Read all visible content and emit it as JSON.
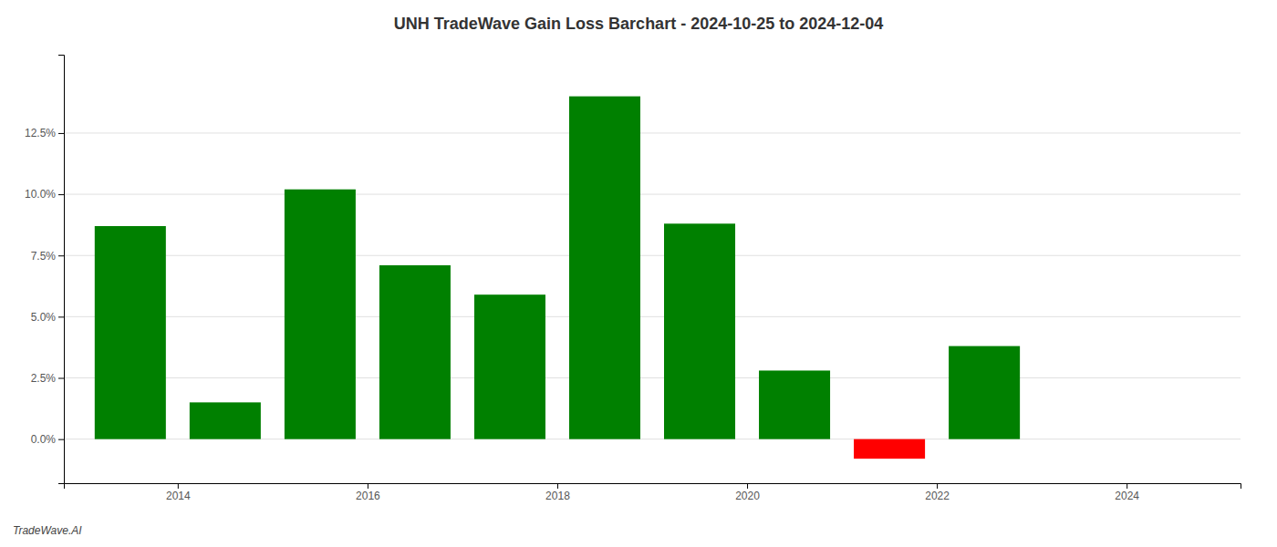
{
  "chart_data": {
    "type": "bar",
    "title": "UNH TradeWave Gain Loss Barchart - 2024-10-25 to 2024-12-04",
    "annotations": [
      "TradeWave.AI"
    ],
    "x": [
      2013.5,
      2014.5,
      2015.5,
      2016.5,
      2017.5,
      2018.5,
      2019.5,
      2020.5,
      2021.5,
      2022.5,
      2023.5
    ],
    "values": [
      0.087,
      0.015,
      0.102,
      0.071,
      0.059,
      0.14,
      0.088,
      0.028,
      -0.008,
      0.038,
      0.0
    ],
    "colors": [
      "#008000",
      "#008000",
      "#008000",
      "#008000",
      "#008000",
      "#008000",
      "#008000",
      "#008000",
      "#ff0000",
      "#008000",
      "#008000"
    ],
    "xlim": [
      2012.8,
      2025.2
    ],
    "ylim": [
      -0.018,
      0.157
    ],
    "xticks": [
      2014,
      2016,
      2018,
      2020,
      2022,
      2024
    ],
    "yticks": [
      {
        "value": 0.0,
        "label": "0.0%"
      },
      {
        "value": 0.025,
        "label": "2.5%"
      },
      {
        "value": 0.05,
        "label": "5.0%"
      },
      {
        "value": 0.075,
        "label": "7.5%"
      },
      {
        "value": 0.1,
        "label": "10.0%"
      },
      {
        "value": 0.125,
        "label": "12.5%"
      }
    ],
    "grid": true
  }
}
